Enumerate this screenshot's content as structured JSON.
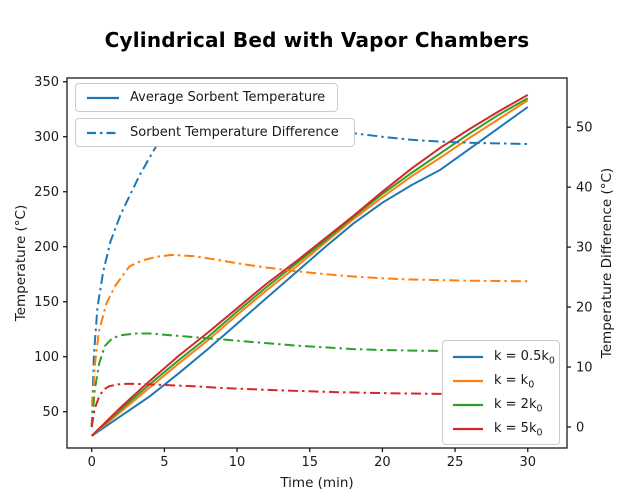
{
  "chart_data": {
    "type": "line",
    "title": "Cylindrical Bed with Vapor Chambers",
    "xlabel": "Time (min)",
    "ylabel_left": "Temperature (°C)",
    "ylabel_right": "Temperature Difference (°C)",
    "xlim": [
      -1.7,
      32.7
    ],
    "ylim_left": [
      17,
      353.4
    ],
    "ylim_right": [
      -3.5,
      58.2
    ],
    "xticks": [
      0,
      5,
      10,
      15,
      20,
      25,
      30
    ],
    "yticks_left": [
      50,
      100,
      150,
      200,
      250,
      300,
      350
    ],
    "yticks_right": [
      0,
      10,
      20,
      30,
      40,
      50
    ],
    "grid": false,
    "colors": {
      "blue": "#1f77b4",
      "orange": "#ff7f0e",
      "green": "#2ca02c",
      "red": "#d62728",
      "frame": "#1a1a1a"
    },
    "legend_avg": {
      "label": "Average Sorbent Temperature",
      "style": "solid",
      "color": "#1f77b4",
      "position": "upper left"
    },
    "legend_diff": {
      "label": "Sorbent Temperature Difference",
      "style": "dashdot",
      "color": "#1f77b4",
      "position": "upper left"
    },
    "legend_k": {
      "position": "lower right",
      "entries": [
        {
          "base": "k = 0.5k",
          "sub": "0",
          "color": "#1f77b4"
        },
        {
          "base": "k = k",
          "sub": "0",
          "color": "#ff7f0e"
        },
        {
          "base": "k = 2k",
          "sub": "0",
          "color": "#2ca02c"
        },
        {
          "base": "k = 5k",
          "sub": "0",
          "color": "#d62728"
        }
      ]
    },
    "series": [
      {
        "name": "avg-temp k=0.5k0",
        "axis": "left",
        "style": "solid",
        "color": "#1f77b4",
        "points": [
          [
            0,
            28
          ],
          [
            2,
            46
          ],
          [
            4,
            64
          ],
          [
            6,
            85
          ],
          [
            8,
            107
          ],
          [
            10,
            130
          ],
          [
            12,
            153
          ],
          [
            14,
            176
          ],
          [
            16,
            199
          ],
          [
            18,
            221
          ],
          [
            20,
            240
          ],
          [
            22,
            256
          ],
          [
            24,
            270
          ],
          [
            26,
            289
          ],
          [
            28,
            308
          ],
          [
            30,
            327
          ]
        ]
      },
      {
        "name": "avg-temp k=k0",
        "axis": "left",
        "style": "solid",
        "color": "#ff7f0e",
        "points": [
          [
            0,
            28
          ],
          [
            2,
            50
          ],
          [
            4,
            72
          ],
          [
            6,
            94
          ],
          [
            8,
            115
          ],
          [
            10,
            138
          ],
          [
            12,
            160
          ],
          [
            14,
            181
          ],
          [
            16,
            203
          ],
          [
            18,
            225
          ],
          [
            20,
            245
          ],
          [
            22,
            264
          ],
          [
            24,
            281
          ],
          [
            26,
            299
          ],
          [
            28,
            316
          ],
          [
            30,
            333
          ]
        ]
      },
      {
        "name": "avg-temp k=2k0",
        "axis": "left",
        "style": "solid",
        "color": "#2ca02c",
        "points": [
          [
            0,
            28
          ],
          [
            2,
            52
          ],
          [
            4,
            75
          ],
          [
            6,
            97
          ],
          [
            8,
            118
          ],
          [
            10,
            141
          ],
          [
            12,
            163
          ],
          [
            14,
            184
          ],
          [
            16,
            205
          ],
          [
            18,
            227
          ],
          [
            20,
            248
          ],
          [
            22,
            267
          ],
          [
            24,
            285
          ],
          [
            26,
            303
          ],
          [
            28,
            320
          ],
          [
            30,
            335
          ]
        ]
      },
      {
        "name": "avg-temp k=5k0",
        "axis": "left",
        "style": "solid",
        "color": "#d62728",
        "points": [
          [
            0,
            28
          ],
          [
            2,
            54
          ],
          [
            4,
            78
          ],
          [
            6,
            101
          ],
          [
            8,
            122
          ],
          [
            10,
            144
          ],
          [
            12,
            166
          ],
          [
            14,
            186
          ],
          [
            16,
            207
          ],
          [
            18,
            228
          ],
          [
            20,
            250
          ],
          [
            22,
            271
          ],
          [
            24,
            290
          ],
          [
            26,
            307
          ],
          [
            28,
            323
          ],
          [
            30,
            338
          ]
        ]
      },
      {
        "name": "temp-diff k=0.5k0",
        "axis": "right",
        "style": "dashdot",
        "color": "#1f77b4",
        "points": [
          [
            0,
            0
          ],
          [
            0.15,
            12
          ],
          [
            0.4,
            20
          ],
          [
            0.8,
            26
          ],
          [
            1.3,
            31
          ],
          [
            2,
            35.5
          ],
          [
            2.6,
            38.5
          ],
          [
            3.3,
            42
          ],
          [
            4,
            45
          ],
          [
            4.6,
            47.5
          ],
          [
            5.4,
            49.3
          ],
          [
            6.5,
            50.4
          ],
          [
            8,
            50.8
          ],
          [
            10,
            50.4
          ],
          [
            12,
            50
          ],
          [
            14,
            49.6
          ],
          [
            16,
            49.3
          ],
          [
            18,
            49
          ],
          [
            20,
            48.4
          ],
          [
            22,
            47.9
          ],
          [
            24,
            47.6
          ],
          [
            26,
            47.4
          ],
          [
            28,
            47.3
          ],
          [
            30,
            47.2
          ]
        ]
      },
      {
        "name": "temp-diff k=k0",
        "axis": "right",
        "style": "dashdot",
        "color": "#ff7f0e",
        "points": [
          [
            0,
            0
          ],
          [
            0.2,
            10
          ],
          [
            0.5,
            16
          ],
          [
            1,
            20.5
          ],
          [
            1.6,
            23.5
          ],
          [
            2.6,
            26.8
          ],
          [
            3.5,
            27.8
          ],
          [
            4.5,
            28.4
          ],
          [
            5.5,
            28.7
          ],
          [
            7,
            28.5
          ],
          [
            8.6,
            27.9
          ],
          [
            10,
            27.3
          ],
          [
            12,
            26.6
          ],
          [
            14,
            26
          ],
          [
            16,
            25.5
          ],
          [
            18,
            25.1
          ],
          [
            20,
            24.8
          ],
          [
            22,
            24.6
          ],
          [
            24,
            24.5
          ],
          [
            26,
            24.4
          ],
          [
            28,
            24.35
          ],
          [
            30,
            24.3
          ]
        ]
      },
      {
        "name": "temp-diff k=2k0",
        "axis": "right",
        "style": "dashdot",
        "color": "#2ca02c",
        "points": [
          [
            0,
            0
          ],
          [
            0.2,
            6
          ],
          [
            0.5,
            10.5
          ],
          [
            0.9,
            13.5
          ],
          [
            1.4,
            14.8
          ],
          [
            2,
            15.3
          ],
          [
            3,
            15.6
          ],
          [
            4,
            15.6
          ],
          [
            5,
            15.4
          ],
          [
            6.5,
            15.1
          ],
          [
            8,
            14.8
          ],
          [
            10,
            14.4
          ],
          [
            12,
            14
          ],
          [
            14,
            13.6
          ],
          [
            16,
            13.3
          ],
          [
            18,
            13
          ],
          [
            20,
            12.85
          ],
          [
            22,
            12.75
          ],
          [
            24,
            12.7
          ],
          [
            26,
            12.65
          ],
          [
            28,
            12.6
          ],
          [
            30,
            12.6
          ]
        ]
      },
      {
        "name": "temp-diff k=5k0",
        "axis": "right",
        "style": "dashdot",
        "color": "#d62728",
        "points": [
          [
            0,
            0
          ],
          [
            0.2,
            3
          ],
          [
            0.5,
            5
          ],
          [
            0.8,
            6.2
          ],
          [
            1.2,
            6.8
          ],
          [
            1.8,
            7.1
          ],
          [
            2.5,
            7.2
          ],
          [
            3.5,
            7.15
          ],
          [
            5,
            7
          ],
          [
            7,
            6.8
          ],
          [
            9,
            6.5
          ],
          [
            11,
            6.3
          ],
          [
            13,
            6.1
          ],
          [
            15,
            5.95
          ],
          [
            17,
            5.8
          ],
          [
            19,
            5.7
          ],
          [
            21,
            5.6
          ],
          [
            23,
            5.55
          ],
          [
            25,
            5.5
          ],
          [
            27,
            5.5
          ],
          [
            30,
            5.45
          ]
        ]
      }
    ]
  }
}
